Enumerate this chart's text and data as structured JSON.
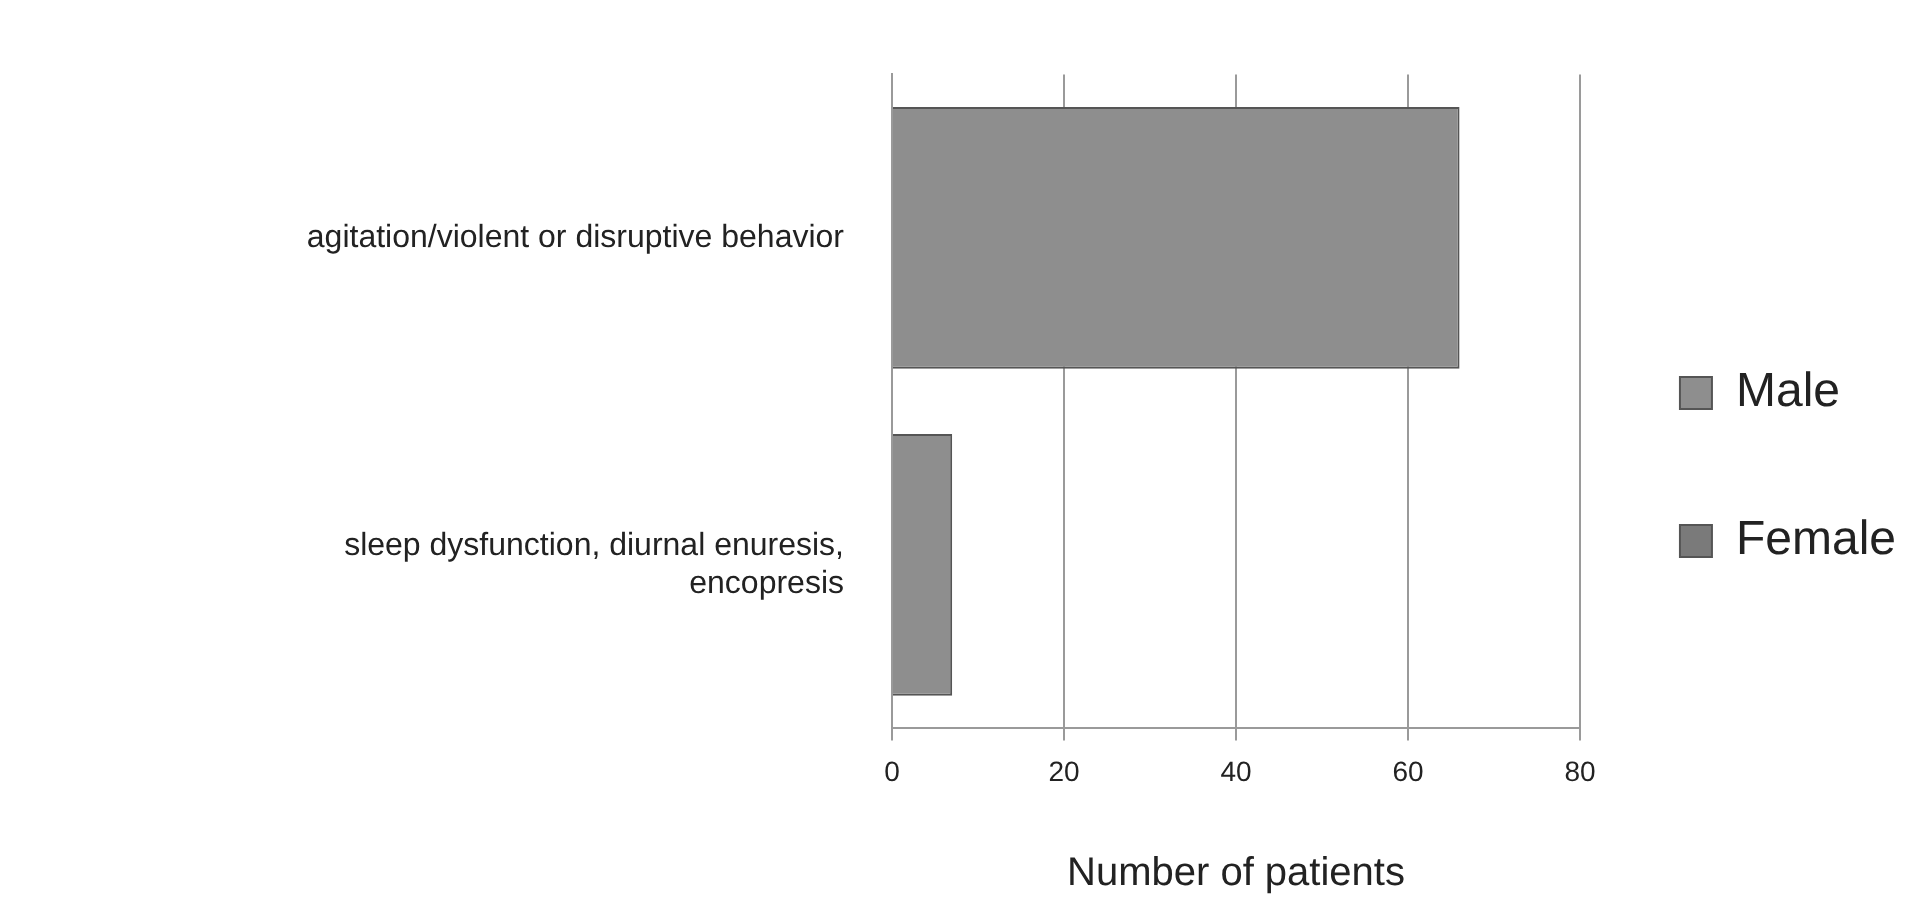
{
  "chart_data": {
    "type": "bar",
    "orientation": "horizontal",
    "stacked": true,
    "categories": [
      "agitation/violent or disruptive behavior",
      "sleep dysfunction, diurnal enuresis, encopresis"
    ],
    "series": [
      {
        "name": "Male",
        "color": "#8e8e8e",
        "values": [
          66,
          7
        ]
      },
      {
        "name": "Female",
        "color": "#7a7a7a",
        "values": [
          null,
          null
        ]
      }
    ],
    "xlim": [
      0,
      80
    ],
    "xticks": [
      0,
      20,
      40,
      60,
      80
    ],
    "xlabel": "Number of patients",
    "grid": "x",
    "legend": "right"
  }
}
